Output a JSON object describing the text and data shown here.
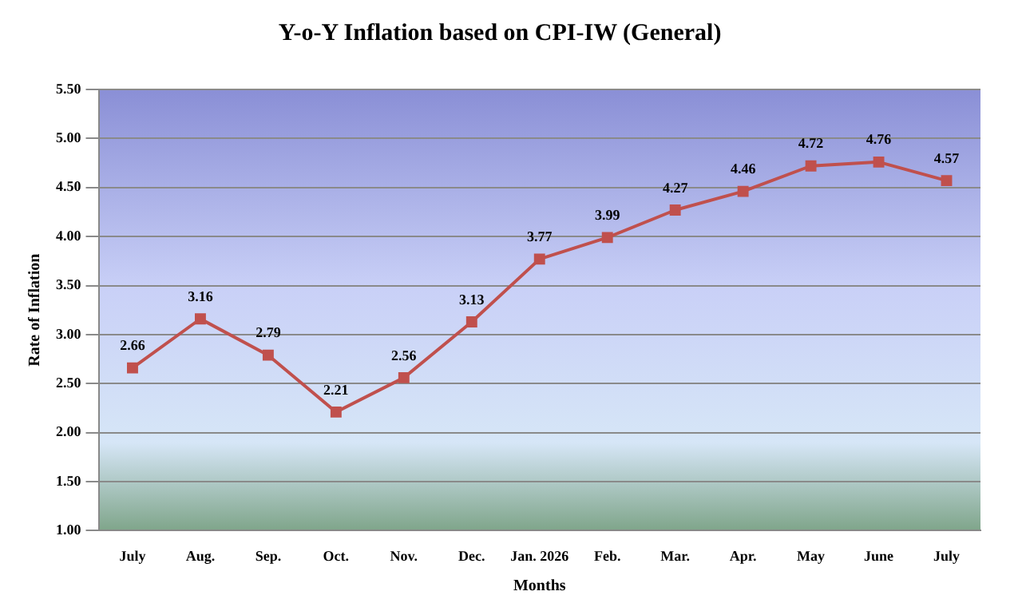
{
  "chart_data": {
    "type": "line",
    "title": "Y-o-Y Inflation based on CPI-IW (General)",
    "xlabel": "Months",
    "ylabel": "Rate of Inflation",
    "categories": [
      "July",
      "Aug.",
      "Sep.",
      "Oct.",
      "Nov.",
      "Dec.",
      "Jan. 2026",
      "Feb.",
      "Mar.",
      "Apr.",
      "May",
      "June",
      "July"
    ],
    "series": [
      {
        "color": "#c0504d",
        "values": [
          2.66,
          3.16,
          2.79,
          2.21,
          2.56,
          3.13,
          3.77,
          3.99,
          4.27,
          4.46,
          4.72,
          4.76,
          4.57
        ]
      }
    ],
    "ylim": [
      1,
      5.5
    ],
    "yticks": [
      {
        "value": 1,
        "label": "1.00"
      },
      {
        "value": 1.5,
        "label": "1.50"
      },
      {
        "value": 2,
        "label": "2.00"
      },
      {
        "value": 2.5,
        "label": "2.50"
      },
      {
        "value": 3,
        "label": "3.00"
      },
      {
        "value": 3.5,
        "label": "3.50"
      },
      {
        "value": 4,
        "label": "4.00"
      },
      {
        "value": 4.5,
        "label": "4.50"
      },
      {
        "value": 5,
        "label": "5.00"
      },
      {
        "value": 5.5,
        "label": "5.50"
      }
    ],
    "grid": "y",
    "legend": false,
    "marker": "square",
    "line_style": "solid",
    "data_labels": true
  }
}
